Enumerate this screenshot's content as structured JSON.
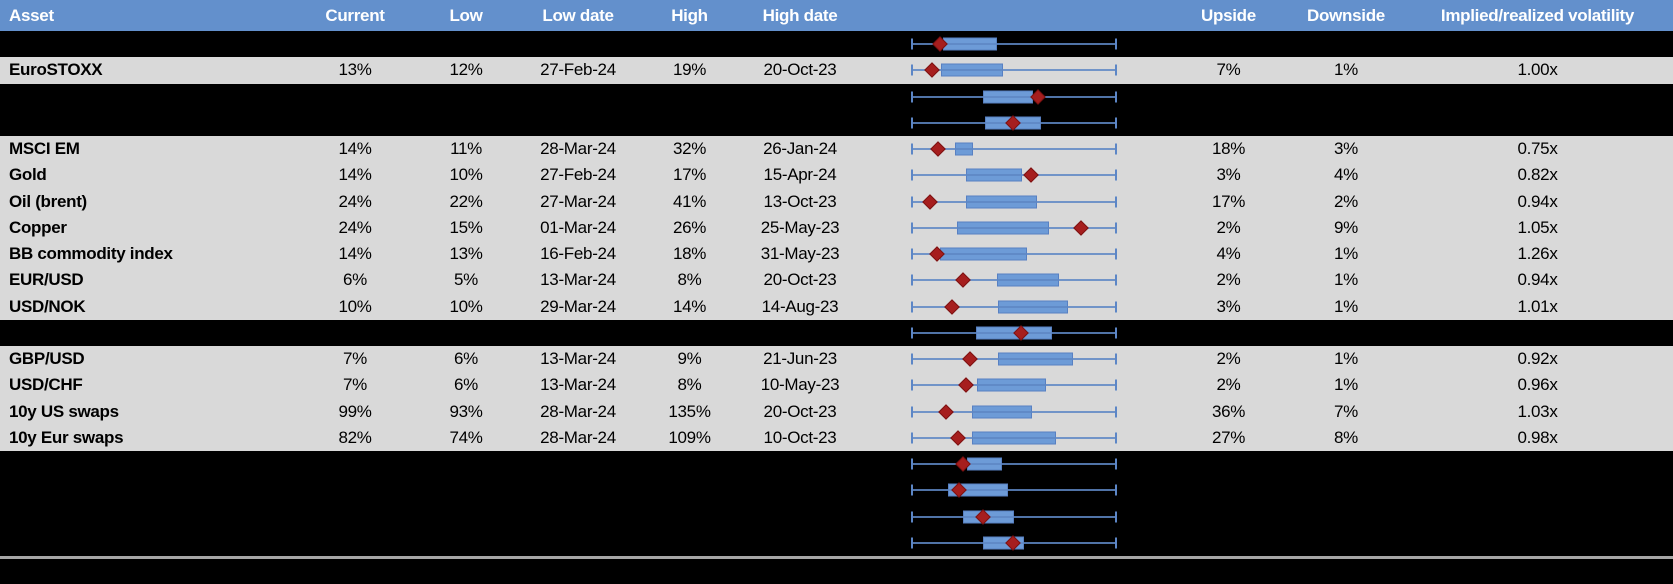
{
  "colors": {
    "header_bg": "#6390CC",
    "header_text": "#FFFFFF",
    "row_bg": "#D9D9D9",
    "spacer_bg": "#000000",
    "box_fill": "#6D9BD7",
    "box_border": "#5880C2",
    "whisker": "#5C86C6",
    "marker": "#A61E1E",
    "separator": "#A6A6A6"
  },
  "columns": [
    {
      "key": "label",
      "text": "Asset"
    },
    {
      "key": "current",
      "text": "Current"
    },
    {
      "key": "low",
      "text": "Low"
    },
    {
      "key": "low_date",
      "text": "Low date"
    },
    {
      "key": "high",
      "text": "High"
    },
    {
      "key": "high_date",
      "text": "High date"
    },
    {
      "key": "plot",
      "text": ""
    },
    {
      "key": "upside",
      "text": "Upside"
    },
    {
      "key": "downside",
      "text": "Downside"
    },
    {
      "key": "iv_rv",
      "text": "Implied/realized volatility"
    }
  ],
  "rows": [
    {
      "type": "spacer"
    },
    {
      "type": "data",
      "label": "EuroSTOXX",
      "current": "13%",
      "low": "12%",
      "low_date": "27-Feb-24",
      "high": "19%",
      "high_date": "20-Oct-23",
      "upside": "7%",
      "downside": "1%",
      "iv_rv": "1.00x"
    },
    {
      "type": "spacer"
    },
    {
      "type": "spacer"
    },
    {
      "type": "data",
      "label": "MSCI EM",
      "current": "14%",
      "low": "11%",
      "low_date": "28-Mar-24",
      "high": "32%",
      "high_date": "26-Jan-24",
      "upside": "18%",
      "downside": "3%",
      "iv_rv": "0.75x"
    },
    {
      "type": "data",
      "label": "Gold",
      "current": "14%",
      "low": "10%",
      "low_date": "27-Feb-24",
      "high": "17%",
      "high_date": "15-Apr-24",
      "upside": "3%",
      "downside": "4%",
      "iv_rv": "0.82x"
    },
    {
      "type": "data",
      "label": "Oil (brent)",
      "current": "24%",
      "low": "22%",
      "low_date": "27-Mar-24",
      "high": "41%",
      "high_date": "13-Oct-23",
      "upside": "17%",
      "downside": "2%",
      "iv_rv": "0.94x"
    },
    {
      "type": "data",
      "label": "Copper",
      "current": "24%",
      "low": "15%",
      "low_date": "01-Mar-24",
      "high": "26%",
      "high_date": "25-May-23",
      "upside": "2%",
      "downside": "9%",
      "iv_rv": "1.05x"
    },
    {
      "type": "data",
      "label": "BB commodity index",
      "current": "14%",
      "low": "13%",
      "low_date": "16-Feb-24",
      "high": "18%",
      "high_date": "31-May-23",
      "upside": "4%",
      "downside": "1%",
      "iv_rv": "1.26x"
    },
    {
      "type": "data",
      "label": "EUR/USD",
      "current": "6%",
      "low": "5%",
      "low_date": "13-Mar-24",
      "high": "8%",
      "high_date": "20-Oct-23",
      "upside": "2%",
      "downside": "1%",
      "iv_rv": "0.94x"
    },
    {
      "type": "data",
      "label": "USD/NOK",
      "current": "10%",
      "low": "10%",
      "low_date": "29-Mar-24",
      "high": "14%",
      "high_date": "14-Aug-23",
      "upside": "3%",
      "downside": "1%",
      "iv_rv": "1.01x"
    },
    {
      "type": "spacer"
    },
    {
      "type": "data",
      "label": "GBP/USD",
      "current": "7%",
      "low": "6%",
      "low_date": "13-Mar-24",
      "high": "9%",
      "high_date": "21-Jun-23",
      "upside": "2%",
      "downside": "1%",
      "iv_rv": "0.92x"
    },
    {
      "type": "data",
      "label": "USD/CHF",
      "current": "7%",
      "low": "6%",
      "low_date": "13-Mar-24",
      "high": "8%",
      "high_date": "10-May-23",
      "upside": "2%",
      "downside": "1%",
      "iv_rv": "0.96x"
    },
    {
      "type": "data",
      "label": "10y US swaps",
      "current": "99%",
      "low": "93%",
      "low_date": "28-Mar-24",
      "high": "135%",
      "high_date": "20-Oct-23",
      "upside": "36%",
      "downside": "7%",
      "iv_rv": "1.03x"
    },
    {
      "type": "data",
      "label": "10y Eur swaps",
      "current": "82%",
      "low": "74%",
      "low_date": "28-Mar-24",
      "high": "109%",
      "high_date": "10-Oct-23",
      "upside": "27%",
      "downside": "8%",
      "iv_rv": "0.98x"
    },
    {
      "type": "spacer"
    },
    {
      "type": "spacer"
    },
    {
      "type": "spacer"
    },
    {
      "type": "spacer"
    }
  ],
  "chart_data": {
    "type": "boxplot",
    "orientation": "horizontal",
    "scale": "percent of whisker span (0 = low end, 100 = high end)",
    "legend_position": "none",
    "grid": false,
    "rows": [
      {
        "label": "",
        "whisker_pct": [
          0,
          100
        ],
        "box_pct": [
          15.3,
          41.5
        ],
        "marker_pct": 13.7
      },
      {
        "label": "EuroSTOXX",
        "whisker_pct": [
          0,
          100
        ],
        "box_pct": [
          14.2,
          44.8
        ],
        "marker_pct": 9.7
      },
      {
        "label": "",
        "whisker_pct": [
          0,
          100
        ],
        "box_pct": [
          34.7,
          59.2
        ],
        "marker_pct": 61.6
      },
      {
        "label": "",
        "whisker_pct": [
          0,
          100
        ],
        "box_pct": [
          35.8,
          63.2
        ],
        "marker_pct": 49.4
      },
      {
        "label": "MSCI EM",
        "whisker_pct": [
          0,
          100
        ],
        "box_pct": [
          21.1,
          29.8
        ],
        "marker_pct": 12.6
      },
      {
        "label": "Gold",
        "whisker_pct": [
          0,
          100
        ],
        "box_pct": [
          26.3,
          54.1
        ],
        "marker_pct": 58.2
      },
      {
        "label": "Oil (brent)",
        "whisker_pct": [
          0,
          100
        ],
        "box_pct": [
          26.5,
          61.1
        ],
        "marker_pct": 8.8
      },
      {
        "label": "Copper",
        "whisker_pct": [
          0,
          100
        ],
        "box_pct": [
          22.2,
          67.2
        ],
        "marker_pct": 82.8
      },
      {
        "label": "BB commodity index",
        "whisker_pct": [
          0,
          100
        ],
        "box_pct": [
          13.7,
          56.5
        ],
        "marker_pct": 12.1
      },
      {
        "label": "EUR/USD",
        "whisker_pct": [
          0,
          100
        ],
        "box_pct": [
          41.8,
          72.2
        ],
        "marker_pct": 24.9
      },
      {
        "label": "USD/NOK",
        "whisker_pct": [
          0,
          100
        ],
        "box_pct": [
          42.0,
          76.6
        ],
        "marker_pct": 19.5
      },
      {
        "label": "",
        "whisker_pct": [
          0,
          100
        ],
        "box_pct": [
          31.4,
          68.5
        ],
        "marker_pct": 53.4
      },
      {
        "label": "GBP/USD",
        "whisker_pct": [
          0,
          100
        ],
        "box_pct": [
          42.0,
          79.1
        ],
        "marker_pct": 28.4
      },
      {
        "label": "USD/CHF",
        "whisker_pct": [
          0,
          100
        ],
        "box_pct": [
          31.7,
          65.7
        ],
        "marker_pct": 26.5
      },
      {
        "label": "10y US swaps",
        "whisker_pct": [
          0,
          100
        ],
        "box_pct": [
          29.3,
          58.7
        ],
        "marker_pct": 16.7
      },
      {
        "label": "10y Eur swaps",
        "whisker_pct": [
          0,
          100
        ],
        "box_pct": [
          29.3,
          70.6
        ],
        "marker_pct": 22.7
      },
      {
        "label": "",
        "whisker_pct": [
          0,
          100
        ],
        "box_pct": [
          27.1,
          44.0
        ],
        "marker_pct": 25.2
      },
      {
        "label": "",
        "whisker_pct": [
          0,
          100
        ],
        "box_pct": [
          17.8,
          46.9
        ],
        "marker_pct": 23.2
      },
      {
        "label": "",
        "whisker_pct": [
          0,
          100
        ],
        "box_pct": [
          24.9,
          50.0
        ],
        "marker_pct": 35.0
      },
      {
        "label": "",
        "whisker_pct": [
          0,
          100
        ],
        "box_pct": [
          35.0,
          55.1
        ],
        "marker_pct": 49.4
      }
    ]
  }
}
